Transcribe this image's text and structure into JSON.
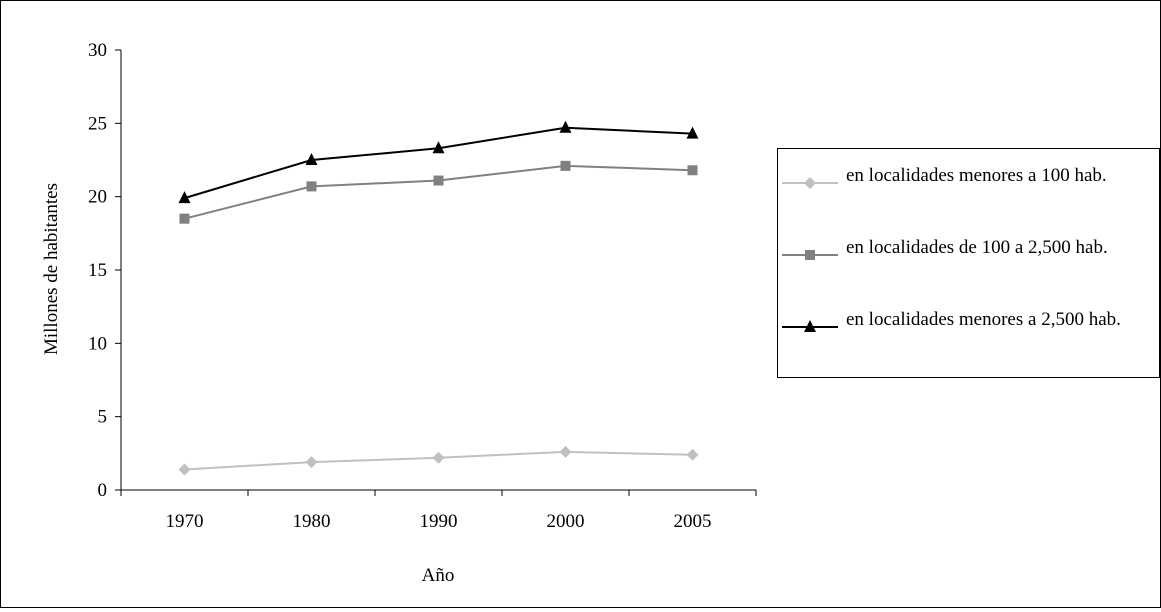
{
  "chart_data": {
    "type": "line",
    "categories": [
      "1970",
      "1980",
      "1990",
      "2000",
      "2005"
    ],
    "ylabel": "Millones de habitantes",
    "xlabel": "Año",
    "ylim": [
      0,
      30
    ],
    "yticks": [
      "0",
      "5",
      "10",
      "15",
      "20",
      "25",
      "30"
    ],
    "grid": false,
    "legend_position": "right",
    "series": [
      {
        "name": "en localidades menores a 100 hab.",
        "values": [
          1.4,
          1.9,
          2.2,
          2.6,
          2.4
        ],
        "color": "#c0c0c0",
        "marker": "diamond"
      },
      {
        "name": "en localidades de 100 a 2,500 hab.",
        "values": [
          18.5,
          20.7,
          21.1,
          22.1,
          21.8
        ],
        "color": "#808080",
        "marker": "square"
      },
      {
        "name": "en localidades menores a 2,500 hab.",
        "values": [
          19.9,
          22.5,
          23.3,
          24.7,
          24.3
        ],
        "color": "#000000",
        "marker": "triangle"
      }
    ]
  }
}
